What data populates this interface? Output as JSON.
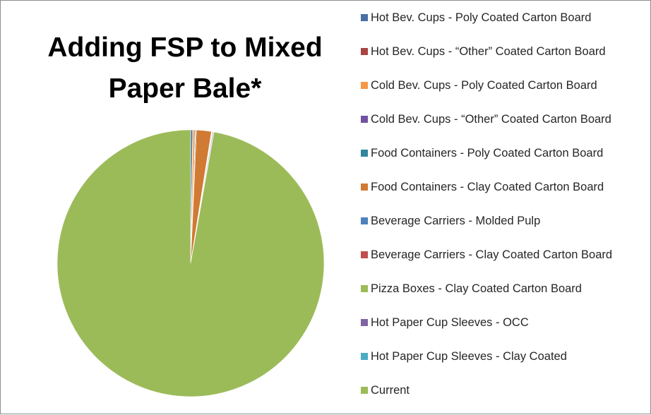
{
  "chart_data": {
    "type": "pie",
    "title": "Adding FSP to Mixed\nPaper Bale*",
    "legend_position": "right",
    "slices": [
      {
        "label": "Hot Bev. Cups - Poly Coated Carton Board",
        "value": 0.25,
        "color": "#4a6fa5"
      },
      {
        "label": "Hot Bev. Cups - “Other” Coated Carton Board",
        "value": 0.05,
        "color": "#a94442"
      },
      {
        "label": "Cold Bev. Cups - Poly Coated Carton Board",
        "value": 0.25,
        "color": "#f79646"
      },
      {
        "label": "Cold Bev. Cups - “Other” Coated Carton Board",
        "value": 0.05,
        "color": "#7153a0"
      },
      {
        "label": "Food Containers - Poly Coated Carton Board",
        "value": 0.1,
        "color": "#31859c"
      },
      {
        "label": "Food Containers - Clay Coated Carton Board",
        "value": 1.8,
        "color": "#d07a33"
      },
      {
        "label": "Beverage Carriers - Molded Pulp",
        "value": 0.05,
        "color": "#4f81bd"
      },
      {
        "label": "Beverage Carriers - Clay Coated Carton Board",
        "value": 0.05,
        "color": "#c0504d"
      },
      {
        "label": "Pizza Boxes - Clay Coated Carton Board",
        "value": 0.05,
        "color": "#9bbb59"
      },
      {
        "label": "Hot Paper Cup Sleeves - OCC",
        "value": 0.1,
        "color": "#8064a2"
      },
      {
        "label": "Hot Paper Cup Sleeves - Clay Coated",
        "value": 0.05,
        "color": "#4bacc6"
      },
      {
        "label": "Current",
        "value": 97.2,
        "color": "#9bbb59"
      }
    ]
  }
}
